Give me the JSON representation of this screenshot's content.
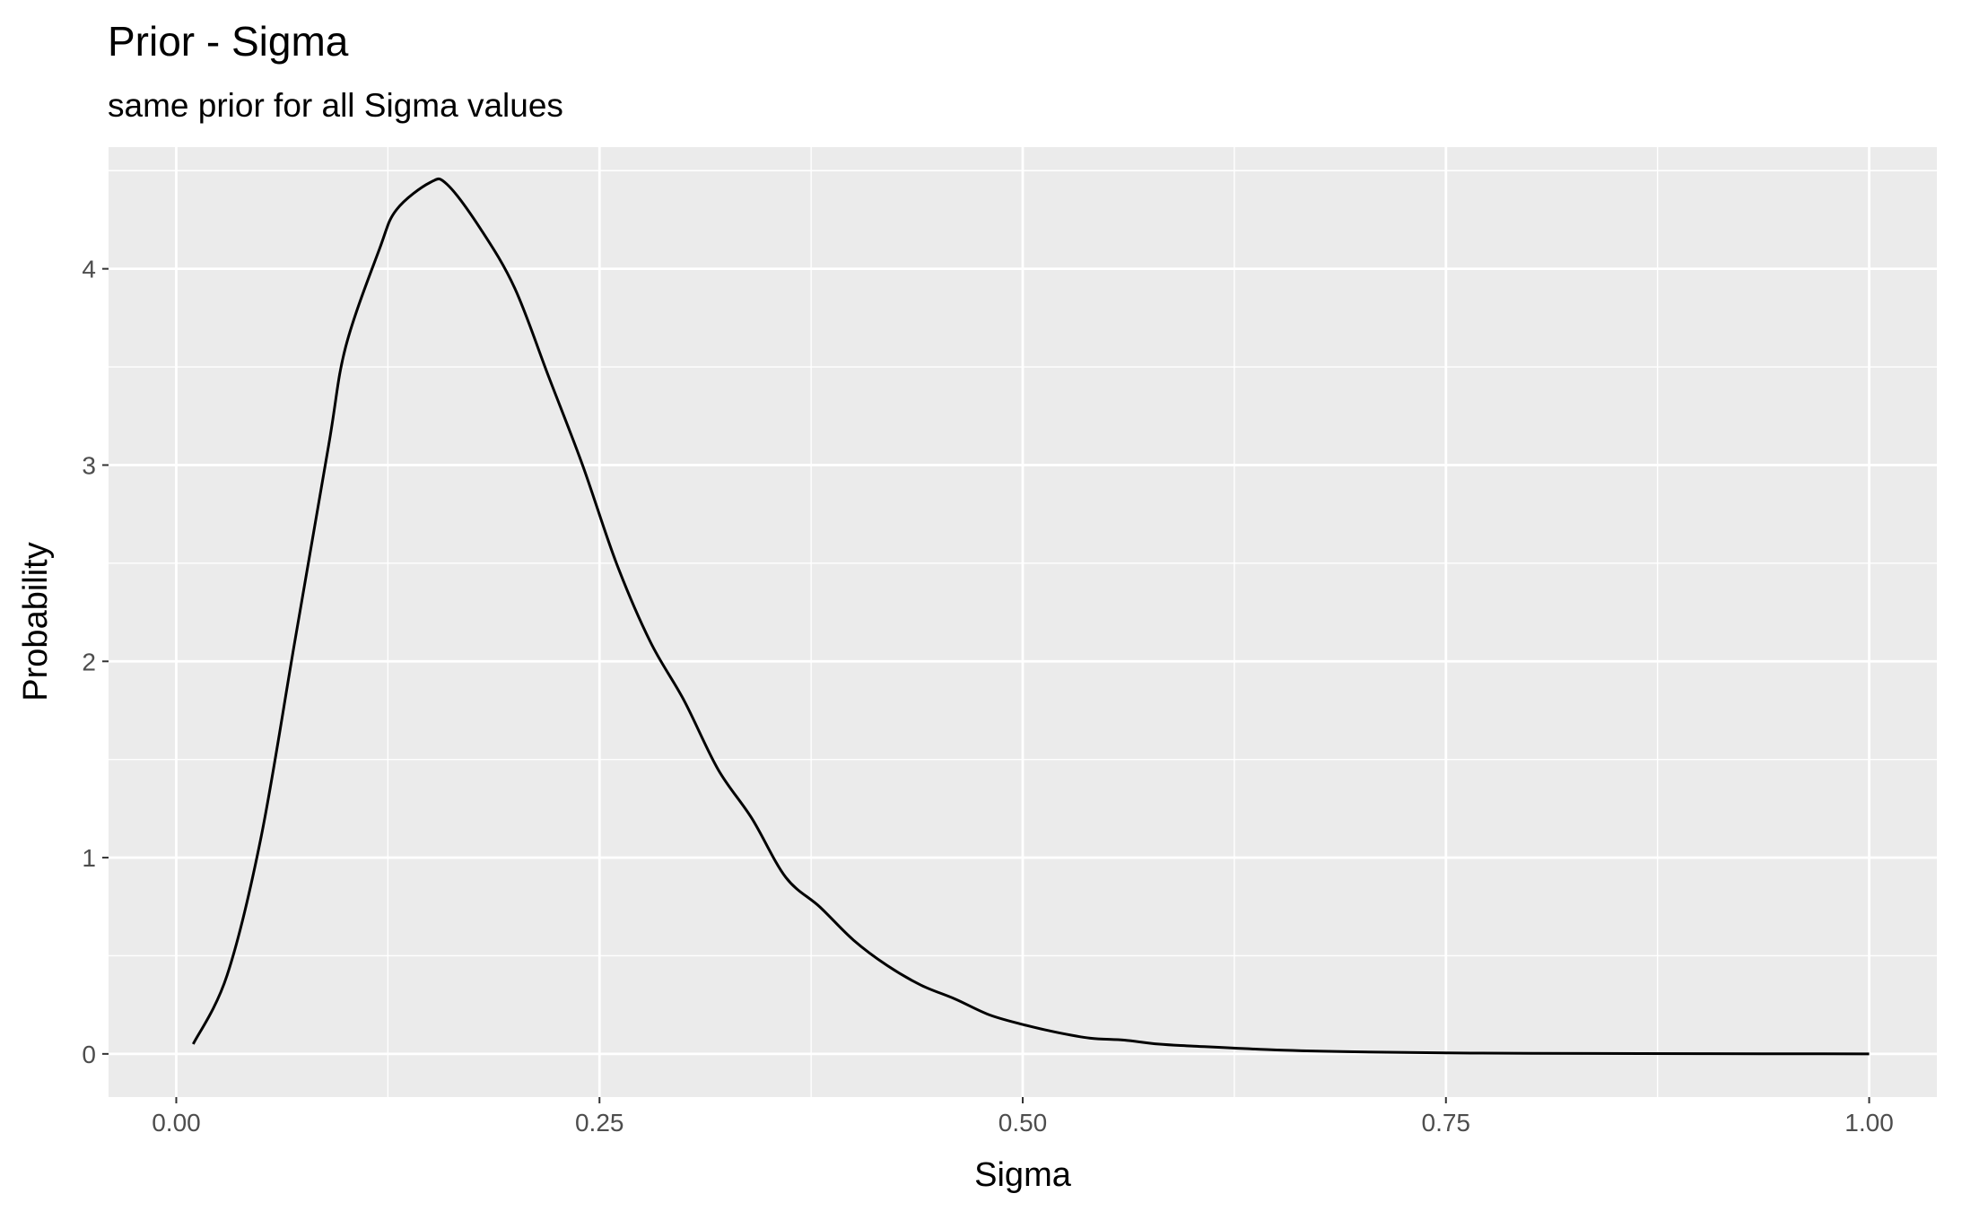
{
  "chart_data": {
    "type": "line",
    "title": "Prior - Sigma",
    "subtitle": "same prior for all Sigma values",
    "xlabel": "Sigma",
    "ylabel": "Probability",
    "xlim": [
      -0.04,
      1.04
    ],
    "ylim": [
      -0.22,
      4.62
    ],
    "xticks": [
      0.0,
      0.25,
      0.5,
      0.75,
      1.0
    ],
    "xtick_labels": [
      "0.00",
      "0.25",
      "0.50",
      "0.75",
      "1.00"
    ],
    "yticks": [
      0,
      1,
      2,
      3,
      4
    ],
    "ytick_labels": [
      "0",
      "1",
      "2",
      "3",
      "4"
    ],
    "grid": true,
    "background": "#ebebeb",
    "line_color": "#000000",
    "series": [
      {
        "x": [
          0.01,
          0.03,
          0.05,
          0.07,
          0.09,
          0.1,
          0.12,
          0.13,
          0.15,
          0.16,
          0.18,
          0.2,
          0.22,
          0.24,
          0.26,
          0.28,
          0.3,
          0.32,
          0.34,
          0.36,
          0.38,
          0.4,
          0.42,
          0.44,
          0.46,
          0.48,
          0.5,
          0.52,
          0.54,
          0.56,
          0.58,
          0.6,
          0.65,
          0.7,
          0.75,
          0.8,
          0.9,
          1.0
        ],
        "y": [
          0.05,
          0.4,
          1.1,
          2.1,
          3.1,
          3.6,
          4.1,
          4.3,
          4.44,
          4.43,
          4.2,
          3.9,
          3.45,
          3.0,
          2.5,
          2.1,
          1.8,
          1.45,
          1.2,
          0.9,
          0.75,
          0.58,
          0.45,
          0.35,
          0.28,
          0.2,
          0.15,
          0.11,
          0.08,
          0.07,
          0.05,
          0.04,
          0.02,
          0.01,
          0.005,
          0.003,
          0.001,
          0.0
        ]
      }
    ]
  }
}
